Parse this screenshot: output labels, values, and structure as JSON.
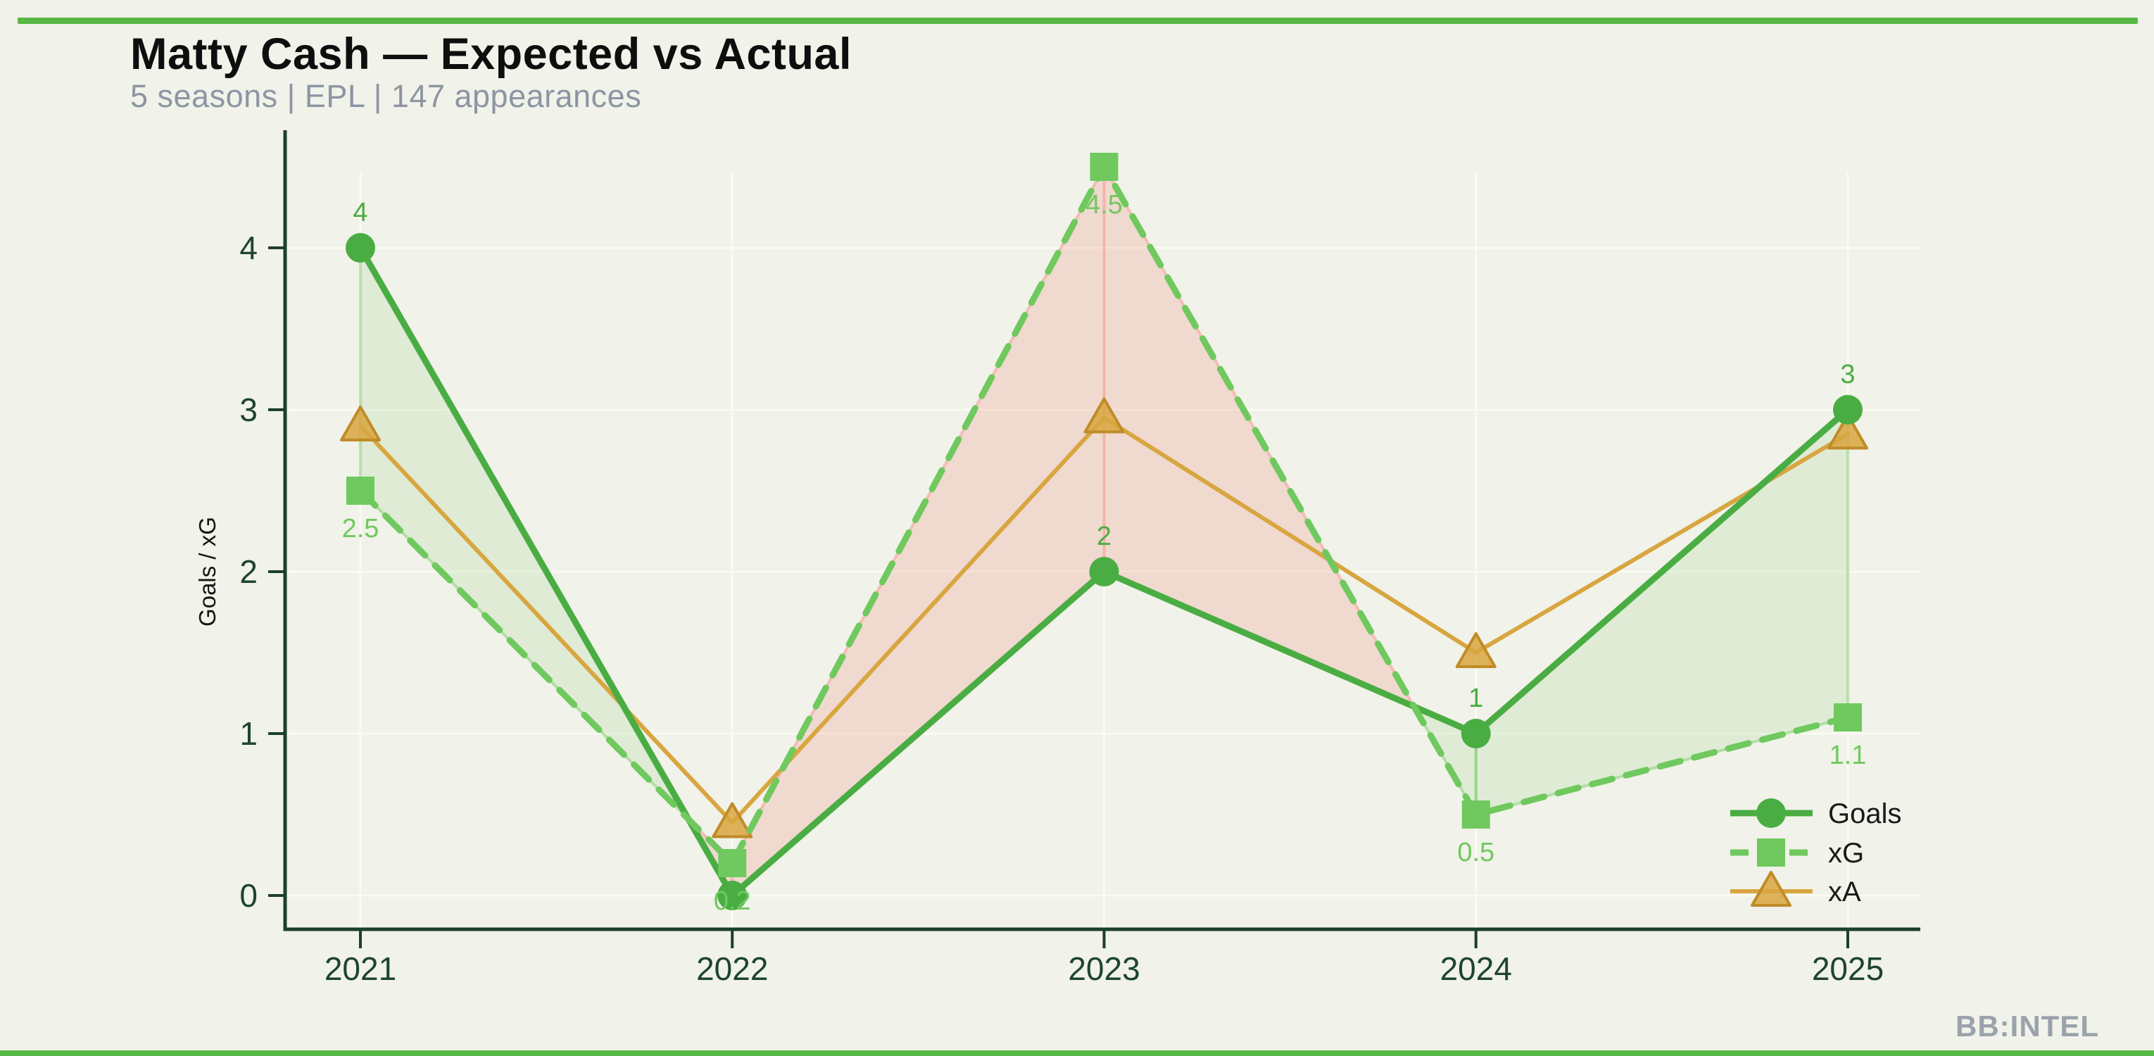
{
  "page": {
    "background_color": "#f1f2e9",
    "accent_bar_color": "#57b845"
  },
  "header": {
    "title": "Matty Cash — Expected vs Actual",
    "subtitle": "5 seasons | EPL | 147 appearances"
  },
  "watermark": "BB:INTEL",
  "chart_data": {
    "type": "line",
    "title": "Matty Cash — Expected vs Actual",
    "subtitle": "5 seasons | EPL | 147 appearances",
    "categories": [
      "2021",
      "2022",
      "2023",
      "2024",
      "2025"
    ],
    "series": [
      {
        "name": "Goals",
        "values": [
          4,
          0,
          2,
          1,
          3
        ],
        "labels": [
          "4",
          "0",
          "2",
          "1",
          "3"
        ],
        "label_position": "above",
        "color": "#4aad43",
        "marker": "circle",
        "line_style": "solid"
      },
      {
        "name": "xG",
        "values": [
          2.5,
          0.2,
          4.5,
          0.5,
          1.1
        ],
        "labels": [
          "2.5",
          "0.2",
          "4.5",
          "0.5",
          "1.1"
        ],
        "label_position": "below",
        "color": "#6fc95e",
        "marker": "square",
        "line_style": "dashed"
      },
      {
        "name": "xA",
        "values": [
          2.9,
          0.45,
          2.95,
          1.5,
          2.85
        ],
        "labels": [],
        "label_position": "above",
        "color": "#d8a640",
        "marker": "triangle",
        "line_style": "solid"
      }
    ],
    "fill_between": {
      "pair": [
        "Goals",
        "xG"
      ],
      "overperform_fill": "rgba(110,195,92,0.14)",
      "overperform_edge": "rgba(130,205,110,0.5)",
      "underperform_fill": "rgba(240,120,105,0.2)",
      "underperform_edge": "rgba(243,180,168,0.8)"
    },
    "xlabel": "",
    "ylabel": "Goals / xG",
    "ylim": [
      0,
      4.7
    ],
    "yticks": [
      0,
      1,
      2,
      3,
      4
    ],
    "grid": true,
    "grid_color": "#fafbf2",
    "axis_color": "#1c3f2a",
    "legend_position": "lower right",
    "legend_entries": [
      "Goals",
      "xG",
      "xA"
    ]
  }
}
